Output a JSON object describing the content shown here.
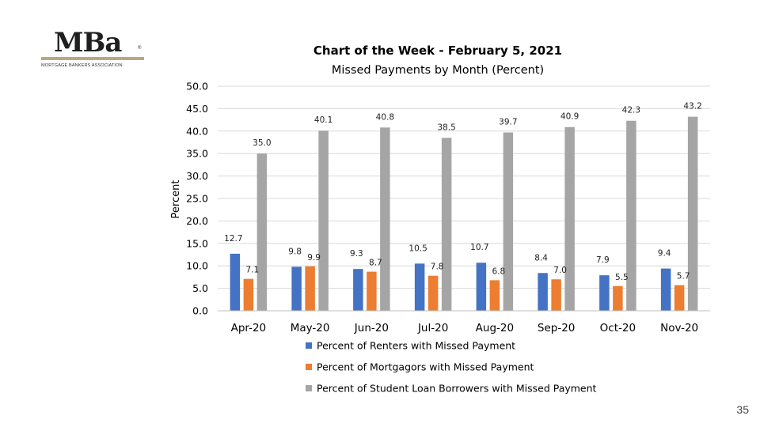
{
  "logo": {
    "word": "MBa",
    "registered": "®",
    "subtitle": "MORTGAGE BANKERS ASSOCIATION"
  },
  "page_number": "35",
  "chart_data": {
    "type": "bar",
    "title": "Chart of the Week - February 5, 2021",
    "subtitle": "Missed Payments by Month (Percent)",
    "xlabel": "",
    "ylabel": "Percent",
    "ylim": [
      0,
      50
    ],
    "yticks": [
      "0.0",
      "5.0",
      "10.0",
      "15.0",
      "20.0",
      "25.0",
      "30.0",
      "35.0",
      "40.0",
      "45.0",
      "50.0"
    ],
    "grid": true,
    "legend_position": "bottom",
    "categories": [
      "Apr-20",
      "May-20",
      "Jun-20",
      "Jul-20",
      "Aug-20",
      "Sep-20",
      "Oct-20",
      "Nov-20"
    ],
    "series": [
      {
        "name": "Percent of Renters with Missed Payment",
        "color": "#4472c4",
        "values": [
          12.7,
          9.8,
          9.3,
          10.5,
          10.7,
          8.4,
          7.9,
          9.4
        ],
        "labels": [
          "12.7",
          "9.8",
          "9.3",
          "10.5",
          "10.7",
          "8.4",
          "7.9",
          "9.4"
        ]
      },
      {
        "name": "Percent of Mortgagors with Missed Payment",
        "color": "#ed7d31",
        "values": [
          7.1,
          9.9,
          8.7,
          7.8,
          6.8,
          7.0,
          5.5,
          5.7
        ],
        "labels": [
          "7.1",
          "9.9",
          "8.7",
          "7.8",
          "6.8",
          "7.0",
          "5.5",
          "5.7"
        ]
      },
      {
        "name": "Percent of Student Loan Borrowers with Missed Payment",
        "color": "#a5a5a5",
        "values": [
          35.0,
          40.1,
          40.8,
          38.5,
          39.7,
          40.9,
          42.3,
          43.2
        ],
        "labels": [
          "35.0",
          "40.1",
          "40.8",
          "38.5",
          "39.7",
          "40.9",
          "42.3",
          "43.2"
        ]
      }
    ]
  }
}
